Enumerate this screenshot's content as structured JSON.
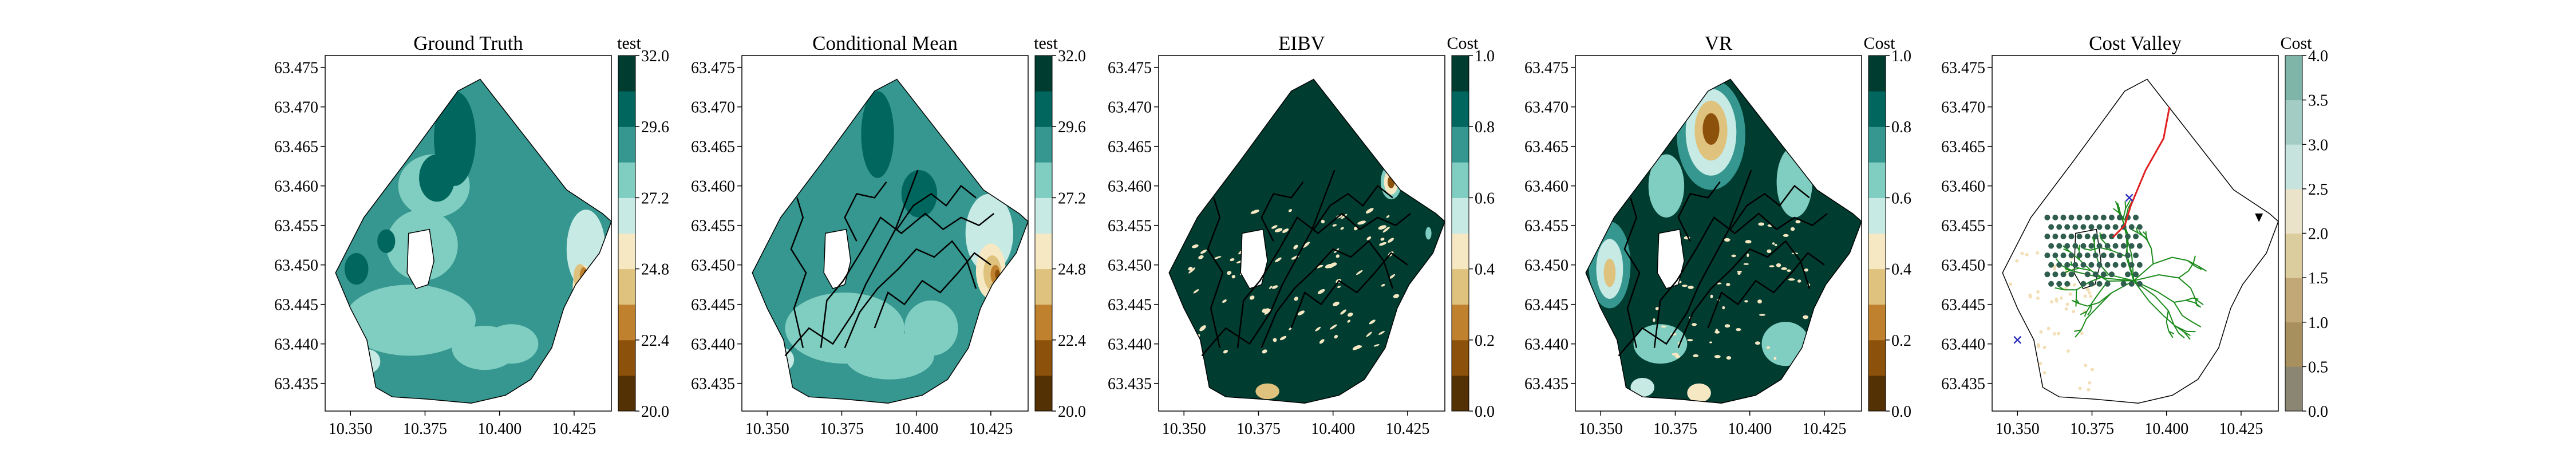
{
  "chart_data": [
    {
      "type": "heatmap",
      "title": "Ground Truth",
      "colorbar": {
        "label": "test",
        "ticks": [
          "20.0",
          "22.4",
          "24.8",
          "27.2",
          "29.6",
          "32.0"
        ],
        "range": [
          20.0,
          32.0
        ]
      },
      "x_ticks": [
        "10.350",
        "10.375",
        "10.400",
        "10.425"
      ],
      "y_ticks": [
        "63.435",
        "63.440",
        "63.445",
        "63.450",
        "63.455",
        "63.460",
        "63.465",
        "63.470",
        "63.475"
      ],
      "colormap": "BrBG"
    },
    {
      "type": "heatmap",
      "title": "Conditional Mean",
      "colorbar": {
        "label": "test",
        "ticks": [
          "20.0",
          "22.4",
          "24.8",
          "27.2",
          "29.6",
          "32.0"
        ],
        "range": [
          20.0,
          32.0
        ]
      },
      "x_ticks": [
        "10.350",
        "10.375",
        "10.400",
        "10.425"
      ],
      "y_ticks": [
        "63.435",
        "63.440",
        "63.445",
        "63.450",
        "63.455",
        "63.460",
        "63.465",
        "63.470",
        "63.475"
      ],
      "colormap": "BrBG"
    },
    {
      "type": "heatmap",
      "title": "EIBV",
      "colorbar": {
        "label": "Cost",
        "ticks": [
          "0.0",
          "0.2",
          "0.4",
          "0.6",
          "0.8",
          "1.0"
        ],
        "range": [
          0.0,
          1.0
        ]
      },
      "x_ticks": [
        "10.350",
        "10.375",
        "10.400",
        "10.425"
      ],
      "y_ticks": [
        "63.435",
        "63.440",
        "63.445",
        "63.450",
        "63.455",
        "63.460",
        "63.465",
        "63.470",
        "63.475"
      ],
      "colormap": "BrBG"
    },
    {
      "type": "heatmap",
      "title": "VR",
      "colorbar": {
        "label": "Cost",
        "ticks": [
          "0.0",
          "0.2",
          "0.4",
          "0.6",
          "0.8",
          "1.0"
        ],
        "range": [
          0.0,
          1.0
        ]
      },
      "x_ticks": [
        "10.350",
        "10.375",
        "10.400",
        "10.425"
      ],
      "y_ticks": [
        "63.435",
        "63.440",
        "63.445",
        "63.450",
        "63.455",
        "63.460",
        "63.465",
        "63.470",
        "63.475"
      ],
      "colormap": "BrBG"
    },
    {
      "type": "heatmap",
      "title": "Cost Valley",
      "colorbar": {
        "label": "Cost",
        "ticks": [
          "0.0",
          "0.5",
          "1.0",
          "1.5",
          "2.0",
          "2.5",
          "3.0",
          "3.5",
          "4.0"
        ],
        "range": [
          0.0,
          4.0
        ]
      },
      "x_ticks": [
        "10.350",
        "10.375",
        "10.400",
        "10.425"
      ],
      "y_ticks": [
        "63.435",
        "63.440",
        "63.445",
        "63.450",
        "63.455",
        "63.460",
        "63.465",
        "63.470",
        "63.475"
      ],
      "colormap": "BrBG (faded)"
    }
  ],
  "palette": {
    "brbg_10": [
      "#543005",
      "#8c510a",
      "#bf812d",
      "#dfc27d",
      "#f6e8c3",
      "#c7eae5",
      "#80cdc1",
      "#35978f",
      "#01665e",
      "#003c30"
    ],
    "path": "#000000",
    "tree": "#1a8a1a",
    "planned": "#e02020",
    "cross": "#3030c0",
    "dots": "#2f5d4e"
  }
}
